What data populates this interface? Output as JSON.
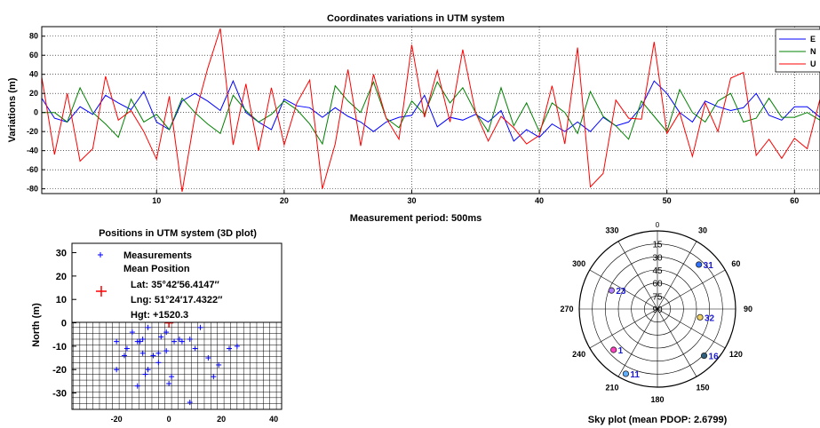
{
  "chart_data": [
    {
      "type": "line",
      "title": "Coordinates variations in UTM system",
      "xlabel": "Measurement period: 500ms",
      "ylabel": "Variations (m)",
      "xlim": [
        1,
        62
      ],
      "ylim": [
        -85,
        90
      ],
      "xticks": [
        10,
        20,
        30,
        40,
        50,
        60
      ],
      "yticks": [
        -80,
        -60,
        -40,
        -20,
        0,
        20,
        40,
        60,
        80
      ],
      "grid": true,
      "legend_position": "top-right",
      "x": [
        1,
        2,
        3,
        4,
        5,
        6,
        7,
        8,
        9,
        10,
        11,
        12,
        13,
        14,
        15,
        16,
        17,
        18,
        19,
        20,
        21,
        22,
        23,
        24,
        25,
        26,
        27,
        28,
        29,
        30,
        31,
        32,
        33,
        34,
        35,
        36,
        37,
        38,
        39,
        40,
        41,
        42,
        43,
        44,
        45,
        46,
        47,
        48,
        49,
        50,
        51,
        52,
        53,
        54,
        55,
        56,
        57,
        58,
        59,
        60,
        61,
        62
      ],
      "series": [
        {
          "name": "E",
          "color": "#0000ff",
          "values": [
            15,
            -6,
            -10,
            6,
            -2,
            18,
            10,
            3,
            22,
            -10,
            -18,
            12,
            20,
            12,
            2,
            33,
            0,
            -10,
            -18,
            14,
            7,
            5,
            -5,
            5,
            -4,
            -10,
            -20,
            -10,
            -5,
            -3,
            18,
            -15,
            -5,
            -8,
            -2,
            -10,
            2,
            -30,
            -18,
            -26,
            -12,
            -20,
            -10,
            -20,
            -5,
            -14,
            -10,
            6,
            33,
            20,
            0,
            -10,
            12,
            6,
            2,
            5,
            20,
            -3,
            -8,
            6,
            6,
            -5
          ]
        },
        {
          "name": "N",
          "color": "#008000",
          "values": [
            0,
            0,
            -10,
            26,
            0,
            -12,
            -26,
            14,
            -10,
            -2,
            -18,
            15,
            0,
            -12,
            -22,
            18,
            2,
            -10,
            -2,
            12,
            3,
            -12,
            -33,
            28,
            12,
            0,
            32,
            -6,
            -16,
            12,
            -2,
            32,
            10,
            26,
            0,
            -20,
            26,
            -14,
            10,
            -20,
            10,
            0,
            -22,
            22,
            -4,
            -14,
            -28,
            12,
            -4,
            -20,
            24,
            0,
            -10,
            12,
            20,
            -10,
            -6,
            15,
            -5,
            -5,
            0,
            -8
          ]
        },
        {
          "name": "U",
          "color": "#ff0000",
          "values": [
            37,
            -44,
            20,
            -51,
            -38,
            38,
            -8,
            2,
            -20,
            -49,
            17,
            -83,
            -4,
            46,
            88,
            -34,
            30,
            -40,
            26,
            -34,
            10,
            34,
            -80,
            -33,
            45,
            -35,
            40,
            -6,
            -28,
            71,
            -5,
            44,
            -10,
            66,
            0,
            -30,
            -4,
            -16,
            -33,
            -24,
            28,
            -33,
            68,
            -78,
            -64,
            13,
            -6,
            -7,
            74,
            -22,
            0,
            -46,
            10,
            -20,
            36,
            42,
            -45,
            -28,
            -48,
            -27,
            -38,
            14
          ]
        }
      ]
    },
    {
      "type": "scatter",
      "title": "Positions in UTM system (3D plot)",
      "ylabel": "North (m)",
      "xlim": [
        -37,
        43
      ],
      "ylim": [
        -37,
        34
      ],
      "xticks": [
        -20,
        0,
        20,
        40
      ],
      "yticks": [
        -30,
        -20,
        -10,
        0,
        10,
        20,
        30
      ],
      "legend": {
        "measurements": "Measurements",
        "mean_position": "Mean Position",
        "lat": "Lat: 35°42′56.4147′′",
        "lng": "Lng: 51°24′17.4322′′",
        "hgt": "Hgt: +1520.3"
      },
      "measurements": [
        [
          -20,
          -20
        ],
        [
          -20,
          -8
        ],
        [
          -17,
          -14
        ],
        [
          -16,
          -11
        ],
        [
          -14,
          -4
        ],
        [
          -12,
          -8
        ],
        [
          -12,
          -27
        ],
        [
          -11,
          -8
        ],
        [
          -10,
          -13
        ],
        [
          -10,
          -7
        ],
        [
          -9,
          -22
        ],
        [
          -8,
          -20
        ],
        [
          -6,
          -14
        ],
        [
          -4,
          -13
        ],
        [
          -3,
          -6
        ],
        [
          -1,
          -12
        ],
        [
          -1,
          -4
        ],
        [
          0,
          -26
        ],
        [
          1,
          -23
        ],
        [
          2,
          -8
        ],
        [
          4,
          -7
        ],
        [
          5,
          -8
        ],
        [
          8,
          -7
        ],
        [
          8,
          -34
        ],
        [
          10,
          -11
        ],
        [
          12,
          -2
        ],
        [
          15,
          -15
        ],
        [
          17,
          -23
        ],
        [
          19,
          -18
        ],
        [
          23,
          -11
        ],
        [
          26,
          -10
        ],
        [
          -4,
          -17
        ],
        [
          -8,
          -2
        ]
      ],
      "mean_position": [
        0,
        0
      ]
    },
    {
      "type": "polar",
      "title": "Sky plot (mean PDOP: 2.6799)",
      "elevation_ticks": [
        0,
        15,
        30,
        45,
        60,
        75,
        90
      ],
      "azimuth_labels": [
        {
          "az": 0,
          "label": "0"
        },
        {
          "az": 30,
          "label": "30"
        },
        {
          "az": 60,
          "label": "60"
        },
        {
          "az": 90,
          "label": "90"
        },
        {
          "az": 120,
          "label": "120"
        },
        {
          "az": 150,
          "label": "150"
        },
        {
          "az": 180,
          "label": "180"
        },
        {
          "az": 210,
          "label": "210"
        },
        {
          "az": 240,
          "label": "240"
        },
        {
          "az": 270,
          "label": "270"
        },
        {
          "az": 300,
          "label": "300"
        },
        {
          "az": 330,
          "label": "330"
        }
      ],
      "satellites": [
        {
          "id": "31",
          "azimuth": 43,
          "elevation": 20,
          "color": "#3070ff"
        },
        {
          "id": "23",
          "azimuth": 292,
          "elevation": 33,
          "color": "#b080ff"
        },
        {
          "id": "32",
          "azimuth": 101,
          "elevation": 40,
          "color": "#f0d060"
        },
        {
          "id": "16",
          "azimuth": 135,
          "elevation": 14,
          "color": "#306080"
        },
        {
          "id": "1",
          "azimuth": 227,
          "elevation": 21,
          "color": "#ff40c0"
        },
        {
          "id": "11",
          "azimuth": 206,
          "elevation": 7,
          "color": "#60b0ff"
        }
      ]
    }
  ]
}
